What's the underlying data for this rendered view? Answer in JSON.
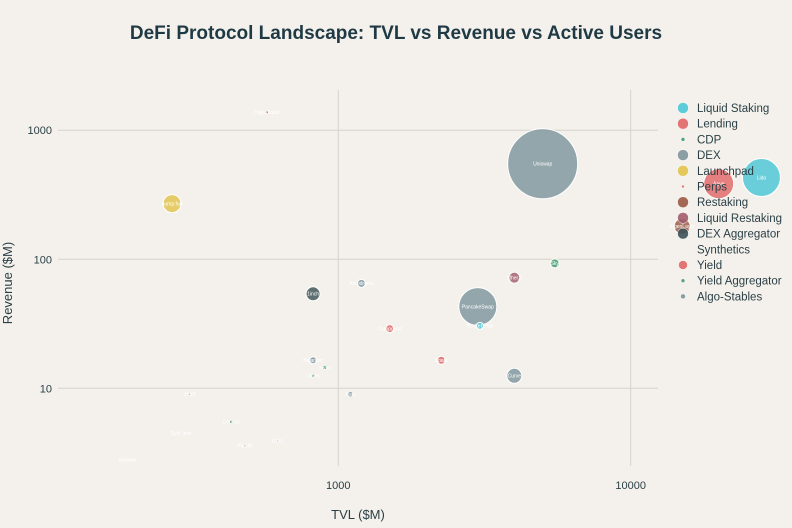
{
  "chart_data": {
    "type": "scatter",
    "title": "DeFi Protocol Landscape: TVL vs Revenue vs Active Users",
    "xlabel": "TVL ($M)",
    "ylabel": "Revenue ($M)",
    "xscale": "log",
    "yscale": "log",
    "xlim": [
      110,
      12400
    ],
    "ylim": [
      2.5,
      2050
    ],
    "xticks": [
      {
        "value": 1000,
        "label": "1000"
      },
      {
        "value": 10000,
        "label": "10000"
      }
    ],
    "yticks": [
      {
        "value": 10,
        "label": "10"
      },
      {
        "value": 100,
        "label": "100"
      },
      {
        "value": 1000,
        "label": "1000"
      }
    ],
    "grid": true,
    "legend_position": "right",
    "size_measure": "Active Users",
    "categories": [
      {
        "name": "Liquid Staking",
        "color": "#4cc6d6"
      },
      {
        "name": "Lending",
        "color": "#e06666"
      },
      {
        "name": "CDP",
        "color": "#3f9b6a"
      },
      {
        "name": "DEX",
        "color": "#7e959c"
      },
      {
        "name": "Launchpad",
        "color": "#e2c34c"
      },
      {
        "name": "Perps",
        "color": "#e06666"
      },
      {
        "name": "Restaking",
        "color": "#9a5a44"
      },
      {
        "name": "Liquid Restaking",
        "color": "#a35d6d"
      },
      {
        "name": "DEX Aggregator",
        "color": "#3d5257"
      },
      {
        "name": "Synthetics",
        "color": "#f6d7d5"
      },
      {
        "name": "Yield",
        "color": "#e06666"
      },
      {
        "name": "Yield Aggregator",
        "color": "#4a9a6e"
      },
      {
        "name": "Algo-Stables",
        "color": "#7e959c"
      }
    ],
    "points": [
      {
        "name": "Lido",
        "category": "Liquid Staking",
        "tvl": 28000,
        "revenue": 430,
        "size": 38
      },
      {
        "name": "Aave",
        "category": "Lending",
        "tvl": 20000,
        "revenue": 385,
        "size": 30
      },
      {
        "name": "Uniswap",
        "category": "DEX",
        "tvl": 5000,
        "revenue": 550,
        "size": 70
      },
      {
        "name": "EigenLayer",
        "category": "Restaking",
        "tvl": 15000,
        "revenue": 180,
        "size": 16
      },
      {
        "name": "PancakeSwap",
        "category": "DEX",
        "tvl": 3000,
        "revenue": 43,
        "size": 38
      },
      {
        "name": "pump.fun",
        "category": "Launchpad",
        "tvl": 270,
        "revenue": 270,
        "size": 18
      },
      {
        "name": "Hyperliquid",
        "category": "Perps",
        "tvl": 570,
        "revenue": 1380,
        "size": 3
      },
      {
        "name": "1inch",
        "category": "DEX Aggregator",
        "tvl": 820,
        "revenue": 54,
        "size": 14
      },
      {
        "name": "Curve",
        "category": "DEX",
        "tvl": 4000,
        "revenue": 12.5,
        "size": 15
      },
      {
        "name": "Sky",
        "category": "CDP",
        "tvl": 5500,
        "revenue": 93,
        "size": 9
      },
      {
        "name": "ether.fi",
        "category": "Liquid Restaking",
        "tvl": 4000,
        "revenue": 72,
        "size": 11
      },
      {
        "name": "Compound",
        "category": "Lending",
        "tvl": 1500,
        "revenue": 29,
        "size": 8
      },
      {
        "name": "Rocket Pool",
        "category": "Liquid Staking",
        "tvl": 3050,
        "revenue": 30.5,
        "size": 7
      },
      {
        "name": "Spark",
        "category": "Lending",
        "tvl": 2250,
        "revenue": 16.5,
        "size": 8
      },
      {
        "name": "Aerodrome",
        "category": "DEX",
        "tvl": 1200,
        "revenue": 65,
        "size": 8
      },
      {
        "name": "Balancer",
        "category": "DEX",
        "tvl": 820,
        "revenue": 16.5,
        "size": 7
      },
      {
        "name": "Frax",
        "category": "Algo-Stables",
        "tvl": 1100,
        "revenue": 9,
        "size": 5
      },
      {
        "name": "Yearn",
        "category": "Yield Aggregator",
        "tvl": 900,
        "revenue": 14.5,
        "size": 4
      },
      {
        "name": "Liquity",
        "category": "CDP",
        "tvl": 820,
        "revenue": 12.5,
        "size": 3
      },
      {
        "name": "Synthetix",
        "category": "Synthetics",
        "tvl": 290,
        "revenue": 4.5,
        "size": 4
      },
      {
        "name": "dYdX",
        "category": "Perps",
        "tvl": 310,
        "revenue": 9,
        "size": 2
      },
      {
        "name": "Convex",
        "category": "Yield Aggregator",
        "tvl": 430,
        "revenue": 5.5,
        "size": 3
      },
      {
        "name": "GMX",
        "category": "Perps",
        "tvl": 620,
        "revenue": 3.9,
        "size": 2
      },
      {
        "name": "Pendle",
        "category": "Yield",
        "tvl": 480,
        "revenue": 3.6,
        "size": 2
      },
      {
        "name": "Kwenta",
        "category": "Synthetics",
        "tvl": 190,
        "revenue": 2.8,
        "size": 2
      }
    ]
  }
}
